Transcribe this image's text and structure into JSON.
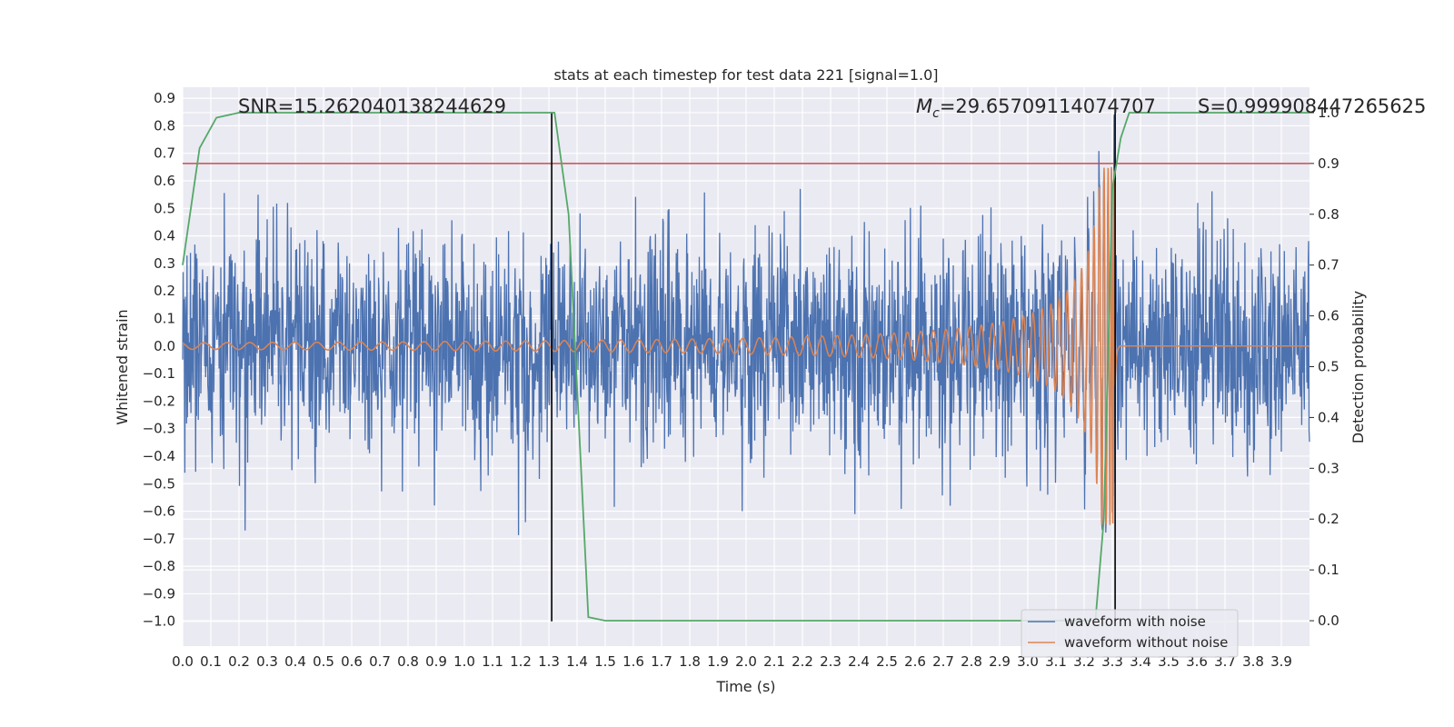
{
  "chart_data": {
    "type": "line",
    "title": "stats at each timestep for test data 221 [signal=1.0]",
    "xlabel": "Time (s)",
    "ylabel": "Whitened strain",
    "y2label": "Detection probability",
    "xlim": [
      0.0,
      4.0
    ],
    "ylim": [
      -1.09,
      0.94
    ],
    "y2lim": [
      -0.05,
      1.05
    ],
    "grid": true,
    "legend_position": "bottom-right",
    "x_ticks": [
      "0.0",
      "0.1",
      "0.2",
      "0.3",
      "0.4",
      "0.5",
      "0.6",
      "0.7",
      "0.8",
      "0.9",
      "1.0",
      "1.1",
      "1.2",
      "1.3",
      "1.4",
      "1.5",
      "1.6",
      "1.7",
      "1.8",
      "1.9",
      "2.0",
      "2.1",
      "2.2",
      "2.3",
      "2.4",
      "2.5",
      "2.6",
      "2.7",
      "2.8",
      "2.9",
      "3.0",
      "3.1",
      "3.2",
      "3.3",
      "3.4",
      "3.5",
      "3.6",
      "3.7",
      "3.8",
      "3.9"
    ],
    "y_ticks": [
      "0.9",
      "0.8",
      "0.7",
      "0.6",
      "0.5",
      "0.4",
      "0.3",
      "0.2",
      "0.1",
      "0.0",
      "-0.1",
      "-0.2",
      "-0.3",
      "-0.4",
      "-0.5",
      "-0.6",
      "-0.7",
      "-0.8",
      "-0.9",
      "-1.0"
    ],
    "y2_ticks": [
      "1.0",
      "0.9",
      "0.8",
      "0.7",
      "0.6",
      "0.5",
      "0.4",
      "0.3",
      "0.2",
      "0.1",
      "0.0"
    ],
    "annotations": {
      "snr": "SNR=15.262040138244629",
      "mc_symbol": "M",
      "mc_subscript": "c",
      "mc_value": "=29.65709114074707",
      "s": "S=0.999908447265625"
    },
    "series": [
      {
        "name": "waveform with noise",
        "color": "#4c72b0",
        "axis": "left",
        "kind": "gaussian-noise",
        "std": 0.2,
        "extremes": {
          "max": 0.84,
          "min": -1.0
        }
      },
      {
        "name": "waveform without noise",
        "color": "#dd8452",
        "axis": "left",
        "kind": "chirp",
        "merger_time": 3.31,
        "peak_amplitude": 0.65,
        "early_amplitude": 0.012
      },
      {
        "name": "detection probability",
        "color": "#55a868",
        "axis": "right",
        "x": [
          0.0,
          0.06,
          0.12,
          0.2,
          0.5,
          1.0,
          1.3,
          1.32,
          1.37,
          1.44,
          1.5,
          2.0,
          3.0,
          3.24,
          3.27,
          3.3,
          3.33,
          3.36,
          3.4,
          3.7,
          4.0
        ],
        "values": [
          0.7,
          0.93,
          0.99,
          1.0,
          1.0,
          1.0,
          1.0,
          1.0,
          0.8,
          0.007,
          0.0,
          0.0,
          0.0,
          0.0,
          0.2,
          0.85,
          0.95,
          1.0,
          1.0,
          1.0,
          1.0
        ]
      }
    ],
    "threshold": {
      "value": 0.9,
      "axis": "right",
      "color": "#c44e52"
    },
    "vertical_lines": [
      {
        "x": 1.31,
        "y_from": -1.0,
        "y_to": 0.85
      },
      {
        "x": 3.31,
        "y_from": -1.0,
        "y_to": 0.85
      }
    ],
    "legend": [
      "waveform with noise",
      "waveform without noise"
    ]
  }
}
